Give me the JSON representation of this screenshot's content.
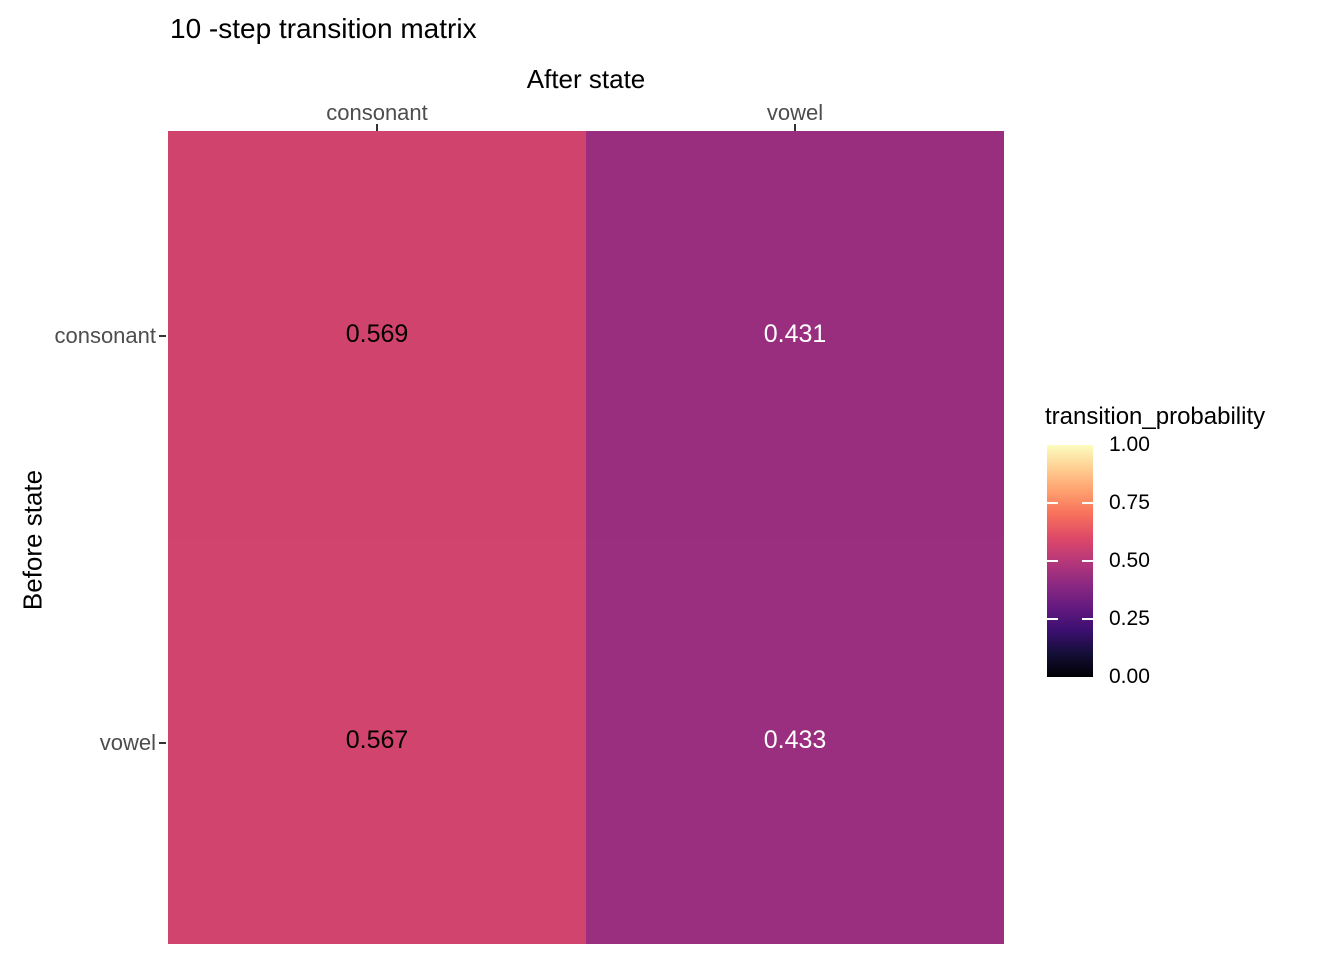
{
  "chart_data": {
    "type": "heatmap",
    "title": "10 -step transition matrix",
    "x_axis": {
      "label": "After state",
      "position": "top",
      "categories": [
        "consonant",
        "vowel"
      ]
    },
    "y_axis": {
      "label": "Before state",
      "categories": [
        "consonant",
        "vowel"
      ]
    },
    "values": [
      [
        0.569,
        0.431
      ],
      [
        0.567,
        0.433
      ]
    ],
    "cell_labels": [
      [
        "0.569",
        "0.431"
      ],
      [
        "0.567",
        "0.433"
      ]
    ],
    "cell_colors": [
      [
        "#D0436D",
        "#992E7F"
      ],
      [
        "#D1446E",
        "#9A2F80"
      ]
    ],
    "cell_text_colors": [
      [
        "#000000",
        "#FFFFFF"
      ],
      [
        "#000000",
        "#FFFFFF"
      ]
    ],
    "legend": {
      "title": "transition_probability",
      "position": "right",
      "colormap": "magma",
      "range": [
        0,
        1
      ],
      "ticks": [
        "1.00",
        "0.75",
        "0.50",
        "0.25",
        "0.00"
      ],
      "tick_fractions_from_top": [
        0,
        0.25,
        0.5,
        0.75,
        1
      ],
      "gradient_top_to_bottom": [
        "#FCFDBF",
        "#FECF92",
        "#FE9F6D",
        "#F7705C",
        "#DE4968",
        "#B73779",
        "#8C2981",
        "#641A80",
        "#3B0F70",
        "#140E36",
        "#000004"
      ]
    },
    "grid": false
  },
  "colors": {
    "background": "#ffffff",
    "tick_label": "#4d4d4d",
    "axis_text": "#000000",
    "tick_mark": "#333333"
  }
}
